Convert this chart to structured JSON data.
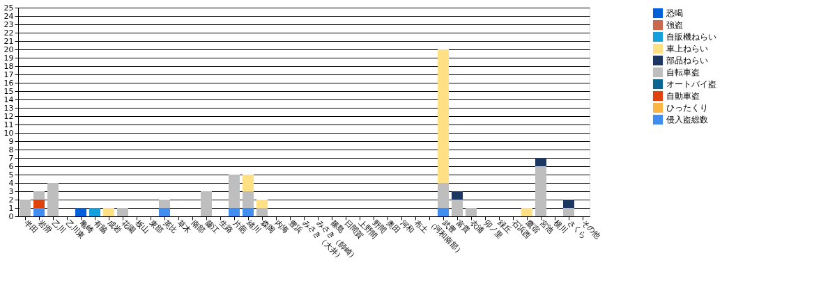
{
  "chart_data": {
    "type": "bar",
    "stacked": true,
    "legend": "right",
    "grid": "y",
    "categories": [
      "半田",
      "岩滑",
      "乙川",
      "乙川東",
      "亀崎",
      "有脇",
      "成岩",
      "花園",
      "板山",
      "東部",
      "英比",
      "草木",
      "南部",
      "藤江",
      "生路",
      "片葩",
      "緒川",
      "森岡",
      "内海",
      "豊浜",
      "みさき（大井）",
      "みさき（師崎）",
      "篠島",
      "日間賀",
      "上野間",
      "野間",
      "奥田",
      "河和",
      "布土",
      "（河和南部）",
      "武豊",
      "富貴",
      "衣浦",
      "卯ノ里",
      "緑丘",
      "石浜西",
      "鷹宿",
      "宮池",
      "横川",
      "さくら",
      "その他"
    ],
    "ylim": [
      0,
      25
    ],
    "yticks": [
      0,
      1,
      2,
      3,
      4,
      5,
      6,
      7,
      8,
      9,
      10,
      11,
      12,
      13,
      14,
      15,
      16,
      17,
      18,
      19,
      20,
      21,
      22,
      23,
      24,
      25
    ],
    "series": [
      {
        "name": "侵入盗総数",
        "color": "#428ef0",
        "values": [
          null,
          1,
          null,
          null,
          null,
          null,
          null,
          null,
          null,
          null,
          1,
          null,
          null,
          null,
          null,
          1,
          1,
          null,
          null,
          null,
          null,
          null,
          null,
          null,
          null,
          null,
          null,
          null,
          null,
          null,
          1,
          null,
          null,
          null,
          null,
          null,
          null,
          null,
          null,
          null,
          null
        ]
      },
      {
        "name": "ひったくり",
        "color": "#fdb643",
        "values": [
          null,
          null,
          null,
          null,
          null,
          null,
          null,
          null,
          null,
          null,
          null,
          null,
          null,
          null,
          null,
          null,
          null,
          null,
          null,
          null,
          null,
          null,
          null,
          null,
          null,
          null,
          null,
          null,
          null,
          null,
          null,
          null,
          null,
          null,
          null,
          null,
          null,
          null,
          null,
          null,
          null
        ]
      },
      {
        "name": "自動車盗",
        "color": "#e0420e",
        "values": [
          null,
          1,
          null,
          null,
          null,
          null,
          null,
          null,
          null,
          null,
          null,
          null,
          null,
          null,
          null,
          null,
          null,
          null,
          null,
          null,
          null,
          null,
          null,
          null,
          null,
          null,
          null,
          null,
          null,
          null,
          null,
          null,
          null,
          null,
          null,
          null,
          null,
          null,
          null,
          null,
          null
        ]
      },
      {
        "name": "オートバイ盗",
        "color": "#0b6591",
        "values": [
          null,
          null,
          null,
          null,
          null,
          null,
          null,
          null,
          null,
          null,
          null,
          null,
          null,
          null,
          null,
          null,
          null,
          null,
          null,
          null,
          null,
          null,
          null,
          null,
          null,
          null,
          null,
          null,
          null,
          null,
          null,
          null,
          null,
          null,
          null,
          null,
          null,
          null,
          null,
          null,
          null
        ]
      },
      {
        "name": "自転車盗",
        "color": "#bebebe",
        "values": [
          2,
          1,
          4,
          null,
          null,
          null,
          null,
          1,
          null,
          null,
          1,
          null,
          null,
          3,
          null,
          4,
          2,
          1,
          null,
          null,
          null,
          null,
          null,
          null,
          null,
          null,
          null,
          null,
          null,
          null,
          3,
          2,
          1,
          null,
          null,
          null,
          null,
          6,
          null,
          1,
          null
        ]
      },
      {
        "name": "部品ねらい",
        "color": "#1d3763",
        "values": [
          null,
          null,
          null,
          null,
          null,
          null,
          null,
          null,
          null,
          null,
          null,
          null,
          null,
          null,
          null,
          null,
          null,
          null,
          null,
          null,
          null,
          null,
          null,
          null,
          null,
          null,
          null,
          null,
          null,
          null,
          null,
          1,
          null,
          null,
          null,
          null,
          null,
          1,
          null,
          1,
          null
        ]
      },
      {
        "name": "車上ねらい",
        "color": "#ffe084",
        "values": [
          null,
          null,
          null,
          null,
          null,
          null,
          1,
          null,
          null,
          null,
          null,
          null,
          null,
          null,
          null,
          null,
          2,
          1,
          null,
          null,
          null,
          null,
          null,
          null,
          null,
          null,
          null,
          null,
          null,
          null,
          16,
          null,
          null,
          null,
          null,
          null,
          1,
          null,
          null,
          null,
          null
        ]
      },
      {
        "name": "自販機ねらい",
        "color": "#13a0dc",
        "values": [
          null,
          null,
          null,
          null,
          null,
          1,
          null,
          null,
          null,
          null,
          null,
          null,
          null,
          null,
          null,
          null,
          null,
          null,
          null,
          null,
          null,
          null,
          null,
          null,
          null,
          null,
          null,
          null,
          null,
          null,
          null,
          null,
          null,
          null,
          null,
          null,
          null,
          null,
          null,
          null,
          null
        ]
      },
      {
        "name": "強盗",
        "color": "#c8694b",
        "values": [
          null,
          null,
          null,
          null,
          null,
          null,
          null,
          null,
          null,
          null,
          null,
          null,
          null,
          null,
          null,
          null,
          null,
          null,
          null,
          null,
          null,
          null,
          null,
          null,
          null,
          null,
          null,
          null,
          null,
          null,
          null,
          null,
          null,
          null,
          null,
          null,
          null,
          null,
          null,
          null,
          null
        ]
      },
      {
        "name": "恐喝",
        "color": "#0060d9",
        "values": [
          null,
          null,
          null,
          null,
          1,
          null,
          null,
          null,
          null,
          null,
          null,
          null,
          null,
          null,
          null,
          null,
          null,
          null,
          null,
          null,
          null,
          null,
          null,
          null,
          null,
          null,
          null,
          null,
          null,
          null,
          null,
          null,
          null,
          null,
          null,
          null,
          null,
          null,
          null,
          null,
          null
        ]
      }
    ]
  }
}
